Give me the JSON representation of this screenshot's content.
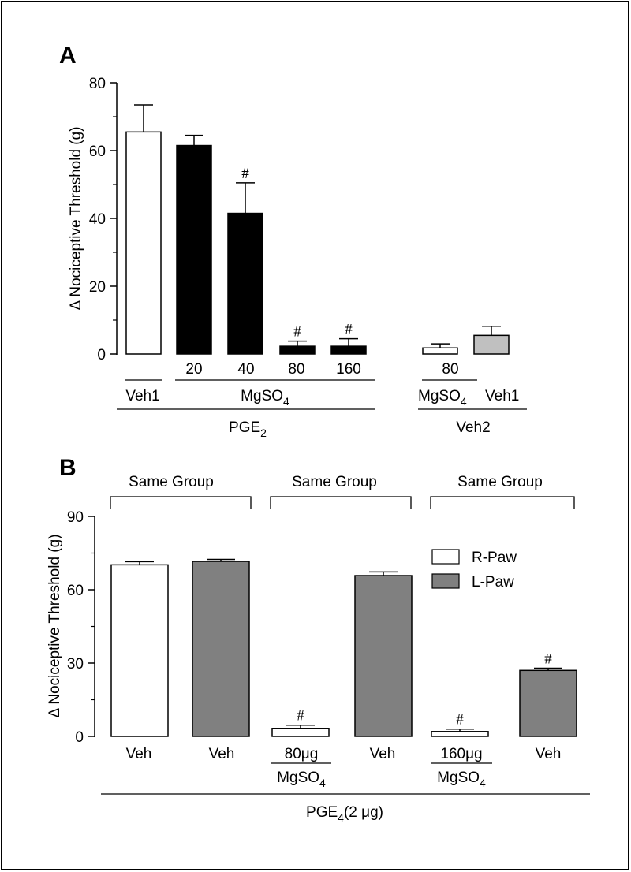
{
  "colors": {
    "axis": "#000000",
    "white_bar": "#ffffff",
    "black_bar": "#000000",
    "light_gray_bar": "#c0c0c0",
    "dark_gray_bar": "#808080"
  },
  "chart_data": [
    {
      "panel": "A",
      "type": "bar",
      "ylabel": "Δ Nociceptive Threshold (g)",
      "ylim": [
        0,
        80
      ],
      "yticks": [
        "0",
        "20",
        "40",
        "60",
        "80"
      ],
      "bars": [
        {
          "value": 65.5,
          "error": 8,
          "fill": "white",
          "mark": ""
        },
        {
          "value": 61.5,
          "error": 3,
          "fill": "black",
          "mark": ""
        },
        {
          "value": 41.5,
          "error": 9,
          "fill": "black",
          "mark": "#"
        },
        {
          "value": 2.3,
          "error": 1.5,
          "fill": "black",
          "mark": "#"
        },
        {
          "value": 2.3,
          "error": 2.2,
          "fill": "black",
          "mark": "#"
        },
        {
          "value": 1.8,
          "error": 1.2,
          "fill": "white",
          "mark": ""
        },
        {
          "value": 5.5,
          "error": 2.7,
          "fill": "lightgray",
          "mark": ""
        }
      ],
      "dose_labels": [
        "20",
        "40",
        "80",
        "160"
      ],
      "dose_label_2": "80",
      "group_labels": {
        "veh1": "Veh1",
        "mgso4_main": "MgSO",
        "mgso4_main_sub": "4",
        "pge_main": "PGE",
        "pge_main_sub": "2",
        "mgso4_right": "MgSO",
        "mgso4_right_sub": "4",
        "veh1_right": "Veh1",
        "veh2": "Veh2"
      }
    },
    {
      "panel": "B",
      "type": "bar",
      "ylabel": "Δ Nociceptive Threshold (g)",
      "ylim": [
        0,
        90
      ],
      "yticks": [
        "0",
        "30",
        "60",
        "90"
      ],
      "legend": {
        "position": "top-right",
        "entries": [
          {
            "name": "R-Paw",
            "fill": "white"
          },
          {
            "name": "L-Paw",
            "fill": "darkgray"
          }
        ]
      },
      "bars": [
        {
          "value": 70.2,
          "error": 1.3,
          "fill": "white",
          "mark": ""
        },
        {
          "value": 71.6,
          "error": 0.8,
          "fill": "darkgray",
          "mark": ""
        },
        {
          "value": 3.3,
          "error": 1.3,
          "fill": "white",
          "mark": "#"
        },
        {
          "value": 65.8,
          "error": 1.5,
          "fill": "darkgray",
          "mark": ""
        },
        {
          "value": 2.0,
          "error": 1.0,
          "fill": "white",
          "mark": "#"
        },
        {
          "value": 27.0,
          "error": 0.9,
          "fill": "darkgray",
          "mark": "#"
        }
      ],
      "category_labels": [
        "Veh",
        "Veh",
        "80μg",
        "Veh",
        "160μg",
        "Veh"
      ],
      "sub_labels": {
        "mgso4": "MgSO",
        "mgso4_sub": "4"
      },
      "group_brackets": [
        "Same Group",
        "Same Group",
        "Same Group"
      ],
      "pge_label": "PGE",
      "pge_sub": "4",
      "pge_suffix": "(2 μg)"
    }
  ],
  "panel_letters": {
    "a": "A",
    "b": "B"
  }
}
